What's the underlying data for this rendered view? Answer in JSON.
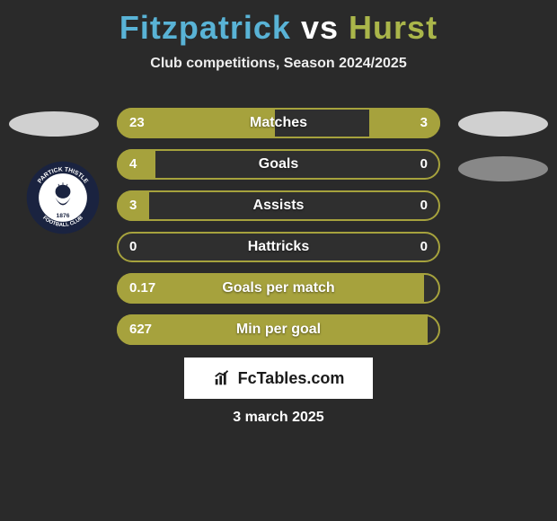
{
  "title": {
    "p1": "Fitzpatrick",
    "vs": "vs",
    "p2": "Hurst"
  },
  "subtitle": "Club competitions, Season 2024/2025",
  "crest": {
    "outer_text_top": "PARTICK THISTLE",
    "outer_text_bottom": "FOOTBALL CLUB",
    "year": "1876",
    "outer_bg": "#1a2340",
    "inner_bg": "#ffffff",
    "text_color": "#ffffff"
  },
  "ellipses": {
    "left_bg": "#d0d0d0",
    "right_bg": "#d0d0d0",
    "right2_bg": "#888888"
  },
  "bars": {
    "track_border": "#a6a23d",
    "fill_color": "#a6a23d",
    "rows": [
      {
        "label": "Matches",
        "left_val": "23",
        "right_val": "3",
        "left_pct": 49,
        "right_pct": 22
      },
      {
        "label": "Goals",
        "left_val": "4",
        "right_val": "0",
        "left_pct": 12,
        "right_pct": 0
      },
      {
        "label": "Assists",
        "left_val": "3",
        "right_val": "0",
        "left_pct": 10,
        "right_pct": 0
      },
      {
        "label": "Hattricks",
        "left_val": "0",
        "right_val": "0",
        "left_pct": 0,
        "right_pct": 0
      },
      {
        "label": "Goals per match",
        "left_val": "0.17",
        "right_val": "",
        "left_pct": 95,
        "right_pct": 0
      },
      {
        "label": "Min per goal",
        "left_val": "627",
        "right_val": "",
        "left_pct": 96,
        "right_pct": 0
      }
    ]
  },
  "brand": {
    "text": "FcTables.com"
  },
  "date": "3 march 2025"
}
